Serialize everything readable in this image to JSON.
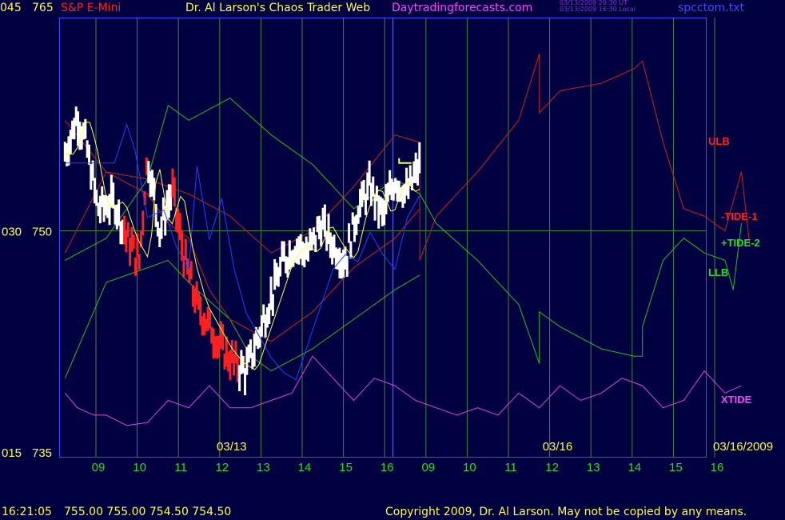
{
  "header": {
    "left_val_top": "045",
    "price_top": "765",
    "symbol": "S&P E-Mini",
    "title": "Dr. Al Larson's Chaos Trader Web",
    "site": "Daytradingforecasts.com",
    "ts_line1": "03/13/2009 20:30 UT",
    "ts_line2": "03/13/2009 16:30 Local",
    "file": "spcctom.txt"
  },
  "footer": {
    "time": "16:21:05",
    "quotes": "755.00 755.00 754.50 754.50",
    "copyright": "Copyright 2009, Dr. Al Larson. May not be copied by any means."
  },
  "colors": {
    "background": "#000040",
    "gridlines": "#3a8a3a",
    "price_bars": "#ffffff",
    "price_bars_down": "#ff2020",
    "ulb_tide1": "#cc2020",
    "tide2_llb": "#20c020",
    "xtide": "#e040e0",
    "blue_avg": "#2040ff",
    "yellow_avg": "#ffff40",
    "now_line": "#3a4cff"
  },
  "chart_data": {
    "type": "line",
    "title": "S&P E-Mini",
    "y_left_labels": [
      {
        "left": "045",
        "price": "765",
        "value": 765
      },
      {
        "left": "030",
        "price": "750",
        "value": 750
      },
      {
        "left": "015",
        "price": "735",
        "value": 735
      }
    ],
    "ylim": [
      735,
      765
    ],
    "x_hour_labels": [
      "09",
      "10",
      "11",
      "12",
      "13",
      "14",
      "15",
      "16",
      "09",
      "10",
      "11",
      "12",
      "13",
      "14",
      "15",
      "16"
    ],
    "date_labels": [
      {
        "text": "03/13",
        "hour_index": 3.6
      },
      {
        "text": "03/16",
        "hour_index": 11.5
      }
    ],
    "end_date": "03/16/2009",
    "series_labels": [
      "ULB",
      "-TIDE-1",
      "+TIDE-2",
      "LLB",
      "XTIDE"
    ],
    "current_price": 754.5,
    "price_bars_approx": [
      [
        0.0,
        755.2
      ],
      [
        0.3,
        757.8
      ],
      [
        0.5,
        756.0
      ],
      [
        0.8,
        751.5
      ],
      [
        1.2,
        752.0
      ],
      [
        1.5,
        749.5
      ],
      [
        1.8,
        748.0
      ],
      [
        2.0,
        755.0
      ],
      [
        2.3,
        750.0
      ],
      [
        2.6,
        752.8
      ],
      [
        2.9,
        748.0
      ],
      [
        3.2,
        745.0
      ],
      [
        3.5,
        743.5
      ],
      [
        3.8,
        742.0
      ],
      [
        4.1,
        741.0
      ],
      [
        4.4,
        740.5
      ],
      [
        4.7,
        743.0
      ],
      [
        5.0,
        745.5
      ],
      [
        5.3,
        748.0
      ],
      [
        5.6,
        749.0
      ],
      [
        5.9,
        748.5
      ],
      [
        6.2,
        750.5
      ],
      [
        6.5,
        749.0
      ],
      [
        6.8,
        748.0
      ],
      [
        7.1,
        751.5
      ],
      [
        7.4,
        753.0
      ],
      [
        7.7,
        751.0
      ],
      [
        8.0,
        753.5
      ],
      [
        8.3,
        752.5
      ],
      [
        8.6,
        754.5
      ]
    ],
    "ulb_approx": [
      [
        0.0,
        748.5
      ],
      [
        1.0,
        754.0
      ],
      [
        2.0,
        753.5
      ],
      [
        3.0,
        752.5
      ],
      [
        4.0,
        751.0
      ],
      [
        5.0,
        748.5
      ],
      [
        6.0,
        750.0
      ],
      [
        7.0,
        753.0
      ],
      [
        8.0,
        756.5
      ],
      [
        8.6,
        756.0
      ],
      [
        8.6,
        748.0
      ],
      [
        9.0,
        751.0
      ],
      [
        10.0,
        754.0
      ],
      [
        11.0,
        757.5
      ],
      [
        11.5,
        762.0
      ],
      [
        11.5,
        758.0
      ],
      [
        12.0,
        759.5
      ],
      [
        13.0,
        760.0
      ],
      [
        13.8,
        761.0
      ],
      [
        14.0,
        761.5
      ],
      [
        14.5,
        756.0
      ],
      [
        15.0,
        751.5
      ],
      [
        15.5,
        751.0
      ],
      [
        16.0,
        750.0
      ],
      [
        16.4,
        754.0
      ],
      [
        16.6,
        749.0
      ]
    ],
    "tide1_approx": [
      [
        0.0,
        757.5
      ],
      [
        1.0,
        754.0
      ],
      [
        2.0,
        752.5
      ],
      [
        2.5,
        750.5
      ],
      [
        3.0,
        749.5
      ],
      [
        3.5,
        746.0
      ],
      [
        4.0,
        744.0
      ],
      [
        5.0,
        742.5
      ],
      [
        6.0,
        744.5
      ],
      [
        7.0,
        747.5
      ],
      [
        8.0,
        749.5
      ],
      [
        8.6,
        751.5
      ]
    ],
    "tide2_approx": [
      [
        0.0,
        740.0
      ],
      [
        1.0,
        746.5
      ],
      [
        2.0,
        747.5
      ],
      [
        2.5,
        748.0
      ],
      [
        3.0,
        746.5
      ],
      [
        4.0,
        744.0
      ],
      [
        4.5,
        741.5
      ],
      [
        5.0,
        740.5
      ],
      [
        6.0,
        742.0
      ],
      [
        7.0,
        744.0
      ],
      [
        8.0,
        746.0
      ],
      [
        8.6,
        747.0
      ]
    ],
    "llb_approx": [
      [
        0.0,
        748.0
      ],
      [
        1.0,
        749.5
      ],
      [
        2.0,
        753.5
      ],
      [
        2.5,
        758.5
      ],
      [
        3.0,
        757.5
      ],
      [
        4.0,
        759.0
      ],
      [
        5.0,
        756.5
      ],
      [
        6.0,
        754.5
      ],
      [
        7.0,
        751.5
      ],
      [
        8.0,
        753.5
      ],
      [
        8.6,
        752.5
      ],
      [
        9.0,
        750.5
      ],
      [
        10.0,
        748.0
      ],
      [
        11.0,
        745.0
      ],
      [
        11.5,
        741.0
      ],
      [
        11.5,
        744.5
      ],
      [
        12.0,
        743.5
      ],
      [
        13.0,
        742.0
      ],
      [
        13.8,
        741.5
      ],
      [
        14.0,
        741.5
      ],
      [
        14.0,
        743.5
      ],
      [
        14.5,
        748.0
      ],
      [
        15.0,
        749.5
      ],
      [
        15.5,
        748.5
      ],
      [
        16.0,
        748.0
      ],
      [
        16.2,
        746.0
      ],
      [
        16.4,
        750.5
      ]
    ],
    "xtide_approx": [
      [
        0.0,
        739.0
      ],
      [
        0.3,
        738.0
      ],
      [
        0.7,
        737.5
      ],
      [
        1.0,
        737.5
      ],
      [
        1.5,
        736.8
      ],
      [
        2.0,
        737.0
      ],
      [
        2.5,
        738.5
      ],
      [
        3.0,
        738.0
      ],
      [
        3.5,
        739.5
      ],
      [
        4.0,
        738.0
      ],
      [
        4.5,
        738.0
      ],
      [
        5.0,
        738.5
      ],
      [
        5.5,
        739.0
      ],
      [
        6.0,
        741.5
      ],
      [
        6.5,
        740.0
      ],
      [
        7.0,
        738.5
      ],
      [
        7.5,
        740.0
      ],
      [
        8.0,
        739.5
      ],
      [
        8.5,
        738.5
      ],
      [
        9.0,
        738.0
      ],
      [
        9.5,
        737.5
      ],
      [
        10.0,
        738.0
      ],
      [
        10.5,
        737.5
      ],
      [
        11.0,
        739.0
      ],
      [
        11.5,
        738.0
      ],
      [
        12.0,
        739.5
      ],
      [
        12.5,
        738.5
      ],
      [
        13.0,
        739.0
      ],
      [
        13.5,
        740.0
      ],
      [
        14.0,
        739.5
      ],
      [
        14.5,
        738.0
      ],
      [
        15.0,
        738.5
      ],
      [
        15.5,
        740.5
      ],
      [
        16.0,
        739.0
      ],
      [
        16.4,
        739.5
      ]
    ]
  }
}
